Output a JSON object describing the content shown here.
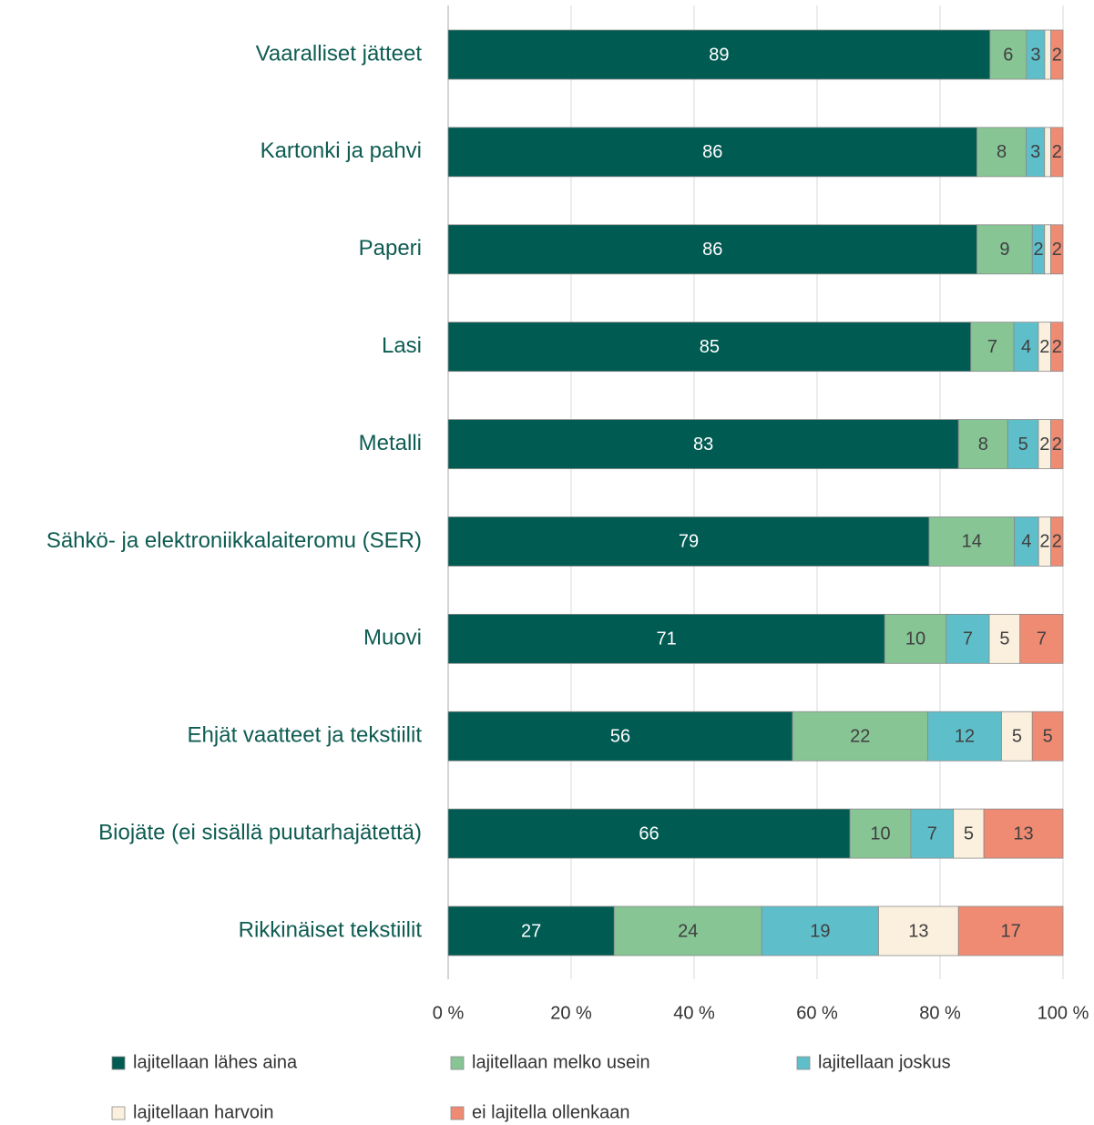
{
  "chart_data": {
    "type": "bar",
    "orientation": "horizontal",
    "stacked": "percent",
    "categories": [
      "Vaaralliset jätteet",
      "Kartonki ja pahvi",
      "Paperi",
      "Lasi",
      "Metalli",
      "Sähkö- ja elektroniikkalaiteromu (SER)",
      "Muovi",
      "Ehjät vaatteet ja tekstiilit",
      "Biojäte (ei sisällä puutarhajätettä)",
      "Rikkinäiset tekstiilit"
    ],
    "series": [
      {
        "name": "lajitellaan lähes aina",
        "color": "#005b53",
        "values": [
          89,
          86,
          86,
          85,
          83,
          79,
          71,
          56,
          66,
          27
        ]
      },
      {
        "name": "lajitellaan melko usein",
        "color": "#87c595",
        "values": [
          6,
          8,
          9,
          7,
          8,
          14,
          10,
          22,
          10,
          24
        ]
      },
      {
        "name": "lajitellaan joskus",
        "color": "#5ebfca",
        "values": [
          3,
          3,
          2,
          4,
          5,
          4,
          7,
          12,
          7,
          19
        ]
      },
      {
        "name": "lajitellaan harvoin",
        "color": "#fbf0de",
        "values": [
          1,
          1,
          1,
          2,
          2,
          2,
          5,
          5,
          5,
          13
        ],
        "value_labels": [
          null,
          null,
          null,
          "2",
          "2",
          "2",
          "5",
          "5",
          "5",
          "13"
        ]
      },
      {
        "name": "ei lajitella ollenkaan",
        "color": "#f08b73",
        "values": [
          2,
          2,
          2,
          2,
          2,
          2,
          7,
          5,
          13,
          17
        ]
      }
    ],
    "xlim": [
      0,
      100
    ],
    "xticks": [
      {
        "value": 0,
        "label": "0 %"
      },
      {
        "value": 20,
        "label": "20 %"
      },
      {
        "value": 40,
        "label": "40 %"
      },
      {
        "value": 60,
        "label": "60 %"
      },
      {
        "value": 80,
        "label": "80 %"
      },
      {
        "value": 100,
        "label": "100 %"
      }
    ],
    "grid": true,
    "legend": "bottom"
  }
}
